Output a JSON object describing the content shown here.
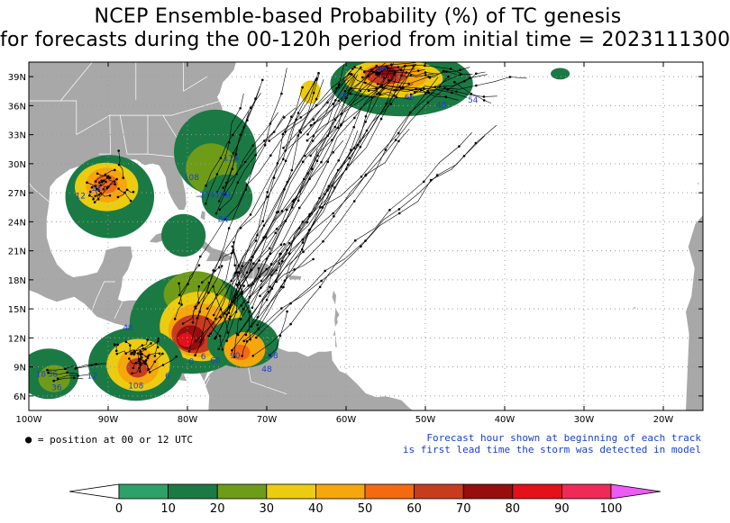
{
  "title": {
    "line1": "NCEP Ensemble-based Probability (%) of TC genesis",
    "line2": "for forecasts during the 00-120h period from initial time = 2023111300"
  },
  "map": {
    "lon_range": [
      -100,
      -15
    ],
    "lat_range": [
      4.5,
      40.5
    ],
    "lon_ticks": [
      {
        "lon": -100,
        "label": "100W"
      },
      {
        "lon": -90,
        "label": "90W"
      },
      {
        "lon": -80,
        "label": "80W"
      },
      {
        "lon": -70,
        "label": "70W"
      },
      {
        "lon": -60,
        "label": "60W"
      },
      {
        "lon": -50,
        "label": "50W"
      },
      {
        "lon": -40,
        "label": "40W"
      },
      {
        "lon": -30,
        "label": "30W"
      },
      {
        "lon": -20,
        "label": "20W"
      }
    ],
    "lat_ticks": [
      {
        "lat": 6,
        "label": "6N"
      },
      {
        "lat": 9,
        "label": "9N"
      },
      {
        "lat": 12,
        "label": "12N"
      },
      {
        "lat": 15,
        "label": "15N"
      },
      {
        "lat": 18,
        "label": "18N"
      },
      {
        "lat": 21,
        "label": "21N"
      },
      {
        "lat": 24,
        "label": "24N"
      },
      {
        "lat": 27,
        "label": "27N"
      },
      {
        "lat": 30,
        "label": "30N"
      },
      {
        "lat": 33,
        "label": "33N"
      },
      {
        "lat": 36,
        "label": "36N"
      },
      {
        "lat": 39,
        "label": "39N"
      }
    ],
    "land_color": "#a8a8a8",
    "grid_color": "#9a9a9a",
    "label_color": "#1a3fd0"
  },
  "genesis_areas": [
    {
      "lon": -53,
      "lat": 38.3,
      "rx": 9,
      "ry": 3.4,
      "p": 15
    },
    {
      "lon": -54,
      "lat": 38.8,
      "rx": 6.2,
      "ry": 2.0,
      "p": 30
    },
    {
      "lon": -54,
      "lat": 39.0,
      "rx": 4.2,
      "ry": 1.5,
      "p": 45
    },
    {
      "lon": -55,
      "lat": 39.2,
      "rx": 2.6,
      "ry": 1.0,
      "p": 60
    },
    {
      "lon": -55,
      "lat": 39.4,
      "rx": 1.4,
      "ry": 0.6,
      "p": 72
    },
    {
      "lon": -64.5,
      "lat": 37.4,
      "rx": 1.3,
      "ry": 1.2,
      "p": 35
    },
    {
      "lon": -33,
      "lat": 39.3,
      "rx": 1.2,
      "ry": 0.6,
      "p": 15
    },
    {
      "lon": -76.5,
      "lat": 31.2,
      "rx": 5.2,
      "ry": 4.4,
      "p": 15
    },
    {
      "lon": -76,
      "lat": 33.2,
      "rx": 2.5,
      "ry": 2.2,
      "p": 15
    },
    {
      "lon": -77,
      "lat": 29.5,
      "rx": 3.2,
      "ry": 2.6,
      "p": 22
    },
    {
      "lon": -75,
      "lat": 26.5,
      "rx": 3.2,
      "ry": 2.4,
      "p": 15
    },
    {
      "lon": -89.8,
      "lat": 26.6,
      "rx": 5.6,
      "ry": 4.3,
      "p": 15
    },
    {
      "lon": -90.2,
      "lat": 27.6,
      "rx": 4.0,
      "ry": 2.5,
      "p": 35
    },
    {
      "lon": -90.2,
      "lat": 27.8,
      "rx": 2.6,
      "ry": 1.8,
      "p": 48
    },
    {
      "lon": -90.3,
      "lat": 27.9,
      "rx": 1.5,
      "ry": 1.0,
      "p": 57
    },
    {
      "lon": -80.5,
      "lat": 22.6,
      "rx": 2.8,
      "ry": 2.2,
      "p": 15
    },
    {
      "lon": -79.5,
      "lat": 13.5,
      "rx": 7.8,
      "ry": 5.2,
      "p": 15
    },
    {
      "lon": -79.0,
      "lat": 16.5,
      "rx": 4.0,
      "ry": 2.4,
      "p": 25
    },
    {
      "lon": -78.2,
      "lat": 13.2,
      "rx": 5.3,
      "ry": 3.6,
      "p": 35
    },
    {
      "lon": -78.4,
      "lat": 12.8,
      "rx": 4.0,
      "ry": 2.8,
      "p": 48
    },
    {
      "lon": -79.0,
      "lat": 12.4,
      "rx": 3.0,
      "ry": 2.0,
      "p": 60
    },
    {
      "lon": -79.6,
      "lat": 12.0,
      "rx": 1.8,
      "ry": 1.3,
      "p": 72
    },
    {
      "lon": -80.2,
      "lat": 11.8,
      "rx": 1.0,
      "ry": 0.7,
      "p": 85
    },
    {
      "lon": -73.0,
      "lat": 11.5,
      "rx": 4.5,
      "ry": 2.6,
      "p": 15
    },
    {
      "lon": -72.8,
      "lat": 10.8,
      "rx": 2.6,
      "ry": 1.8,
      "p": 40
    },
    {
      "lon": -73.3,
      "lat": 10.5,
      "rx": 1.2,
      "ry": 0.8,
      "p": 55
    },
    {
      "lon": -86.5,
      "lat": 9.3,
      "rx": 6.0,
      "ry": 3.8,
      "p": 15
    },
    {
      "lon": -86.2,
      "lat": 9.2,
      "rx": 4.0,
      "ry": 2.7,
      "p": 35
    },
    {
      "lon": -86.2,
      "lat": 9.0,
      "rx": 2.6,
      "ry": 1.9,
      "p": 48
    },
    {
      "lon": -86.3,
      "lat": 8.9,
      "rx": 1.4,
      "ry": 1.0,
      "p": 62
    },
    {
      "lon": -97.5,
      "lat": 8.3,
      "rx": 3.8,
      "ry": 2.6,
      "p": 15
    },
    {
      "lon": -96.8,
      "lat": 7.8,
      "rx": 2.0,
      "ry": 1.4,
      "p": 25
    }
  ],
  "track_labels": [
    {
      "lon": -55.5,
      "lat": 39.5,
      "text": "06"
    },
    {
      "lon": -60.5,
      "lat": 36.8,
      "text": "36"
    },
    {
      "lon": -52,
      "lat": 36.6,
      "text": "66"
    },
    {
      "lon": -48,
      "lat": 35.8,
      "text": "48"
    },
    {
      "lon": -44,
      "lat": 36.3,
      "text": "54"
    },
    {
      "lon": -74.5,
      "lat": 30.3,
      "text": "114"
    },
    {
      "lon": -79.5,
      "lat": 28.3,
      "text": "108"
    },
    {
      "lon": -76.5,
      "lat": 26.5,
      "text": "114108"
    },
    {
      "lon": -75.5,
      "lat": 24.0,
      "text": "84"
    },
    {
      "lon": -93.5,
      "lat": 26.4,
      "text": "12"
    },
    {
      "lon": -91.5,
      "lat": 27.2,
      "text": "12"
    },
    {
      "lon": -87.5,
      "lat": 12.8,
      "text": "48"
    },
    {
      "lon": -79.5,
      "lat": 9.3,
      "text": "0"
    },
    {
      "lon": -78.0,
      "lat": 9.8,
      "text": "6"
    },
    {
      "lon": -76.5,
      "lat": 9.4,
      "text": "60"
    },
    {
      "lon": -74.0,
      "lat": 9.9,
      "text": "90"
    },
    {
      "lon": -70.0,
      "lat": 8.5,
      "text": "48"
    },
    {
      "lon": -69.2,
      "lat": 9.9,
      "text": "48"
    },
    {
      "lon": -98.5,
      "lat": 8.0,
      "text": "18"
    },
    {
      "lon": -97.0,
      "lat": 8.0,
      "text": "36"
    },
    {
      "lon": -96.5,
      "lat": 6.6,
      "text": "36"
    },
    {
      "lon": -92.0,
      "lat": 7.8,
      "text": "12"
    },
    {
      "lon": -86.5,
      "lat": 6.8,
      "text": "108"
    },
    {
      "lon": -82.5,
      "lat": 7.8,
      "text": "6"
    }
  ],
  "notes": {
    "position": "= position at 00 or 12 UTC",
    "forecast_line1": "Forecast hour shown at beginning of each track",
    "forecast_line2": "is first lead time the storm was detected in model"
  },
  "colorbar": {
    "colors": [
      "#2ea06a",
      "#1b7a44",
      "#6f9c18",
      "#eccc10",
      "#f6a70c",
      "#f36a10",
      "#c83c1e",
      "#960e0e",
      "#e4101a",
      "#f02a56"
    ],
    "under_color": "#ffffff",
    "over_color": "#ec5cf4",
    "ticks": [
      "0",
      "10",
      "20",
      "30",
      "40",
      "50",
      "60",
      "70",
      "80",
      "90",
      "100"
    ]
  }
}
